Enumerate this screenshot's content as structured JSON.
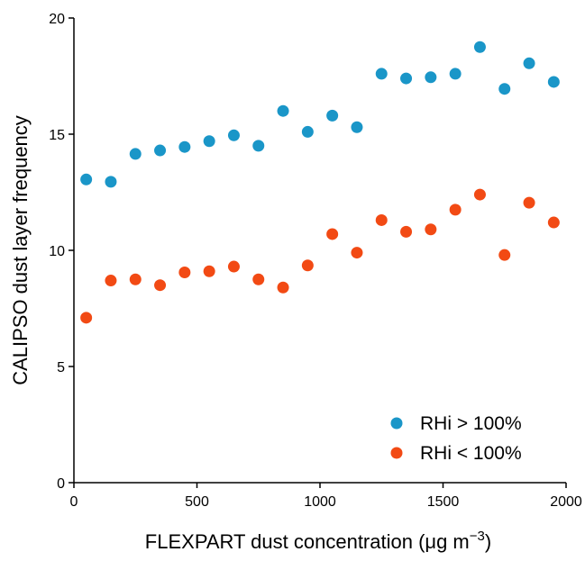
{
  "chart_data": {
    "type": "scatter",
    "title": "",
    "xlabel": "FLEXPART dust concentration (μg m",
    "xlabel_superscript": "−3",
    "xlabel_suffix": ")",
    "ylabel": "CALIPSO dust layer frequency",
    "xlim": [
      0,
      2000
    ],
    "ylim": [
      0,
      20
    ],
    "xticks": [
      0,
      500,
      1000,
      1500,
      2000
    ],
    "yticks": [
      0,
      5,
      10,
      15,
      20
    ],
    "grid": false,
    "legend_position": "bottom-right",
    "series": [
      {
        "name": "RHi > 100%",
        "color": "#1a96c8",
        "x": [
          50,
          150,
          250,
          350,
          450,
          550,
          650,
          750,
          850,
          950,
          1050,
          1150,
          1250,
          1350,
          1450,
          1550,
          1650,
          1750,
          1850,
          1950
        ],
        "y": [
          13.05,
          12.95,
          14.15,
          14.3,
          14.45,
          14.7,
          14.95,
          14.5,
          16.0,
          15.1,
          15.8,
          15.3,
          17.6,
          17.4,
          17.45,
          17.6,
          18.75,
          16.95,
          18.05,
          17.25
        ]
      },
      {
        "name": "RHi < 100%",
        "color": "#f24a14",
        "x": [
          50,
          150,
          250,
          350,
          450,
          550,
          650,
          750,
          850,
          950,
          1050,
          1150,
          1250,
          1350,
          1450,
          1550,
          1650,
          1750,
          1850,
          1950
        ],
        "y": [
          7.1,
          8.7,
          8.75,
          8.5,
          9.05,
          9.1,
          9.3,
          8.75,
          8.4,
          9.35,
          10.7,
          9.9,
          11.3,
          10.8,
          10.9,
          11.75,
          12.4,
          9.8,
          12.05,
          11.2
        ]
      }
    ]
  }
}
